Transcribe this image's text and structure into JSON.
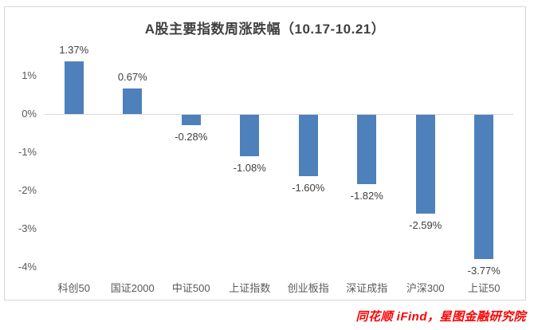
{
  "chart_data": {
    "type": "bar",
    "title": "A股主要指数周涨跌幅（10.17-10.21）",
    "categories": [
      "科创50",
      "国证2000",
      "中证500",
      "上证指数",
      "创业板指",
      "深证成指",
      "沪深300",
      "上证50"
    ],
    "values": [
      1.37,
      0.67,
      -0.28,
      -1.08,
      -1.6,
      -1.82,
      -2.59,
      -3.77
    ],
    "value_labels": [
      "1.37%",
      "0.67%",
      "-0.28%",
      "-1.08%",
      "-1.60%",
      "-1.82%",
      "-2.59%",
      "-3.77%"
    ],
    "y_ticks": [
      {
        "label": "1%",
        "value": 1
      },
      {
        "label": "0%",
        "value": 0
      },
      {
        "label": "-1%",
        "value": -1
      },
      {
        "label": "-2%",
        "value": -2
      },
      {
        "label": "-3%",
        "value": -3
      },
      {
        "label": "-4%",
        "value": -4
      }
    ],
    "ylim": [
      -4.3,
      1.6
    ],
    "xlabel": "",
    "ylabel": "",
    "legend": "none",
    "grid": "zero-line-only",
    "bar_color": "#4e80bb",
    "axis_line_color": "#d9d9d9",
    "title_color": "#404040",
    "tick_color": "#595959",
    "data_label_color": "#404040"
  },
  "footer": {
    "source_text": "同花顺 iFind，星图金融研究院",
    "color": "#fe0000"
  }
}
